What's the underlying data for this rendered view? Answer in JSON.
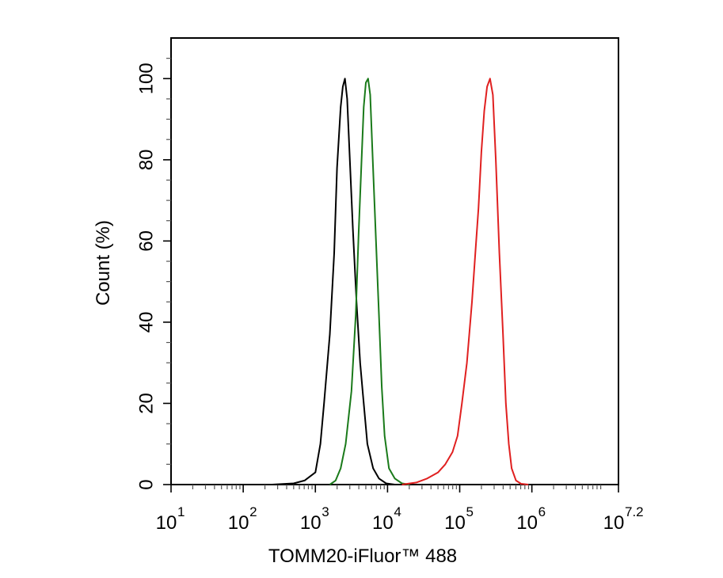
{
  "chart_data": {
    "type": "line",
    "title": "",
    "xlabel": "TOMM20-iFluor™ 488",
    "ylabel": "Count  (%)",
    "x_scale": "log10",
    "xlim_log10": [
      1,
      7.2
    ],
    "ylim": [
      0,
      110
    ],
    "x_ticks": [
      {
        "base": "10",
        "exp": "1"
      },
      {
        "base": "10",
        "exp": "2"
      },
      {
        "base": "10",
        "exp": "3"
      },
      {
        "base": "10",
        "exp": "4"
      },
      {
        "base": "10",
        "exp": "5"
      },
      {
        "base": "10",
        "exp": "6"
      },
      {
        "base": "10",
        "exp": "7.2"
      }
    ],
    "y_ticks": [
      "0",
      "20",
      "40",
      "60",
      "80",
      "100"
    ],
    "grid": false,
    "series": [
      {
        "color": "#000000",
        "points": [
          [
            2.4,
            0
          ],
          [
            2.7,
            0.3
          ],
          [
            2.85,
            1
          ],
          [
            3.0,
            3
          ],
          [
            3.07,
            10
          ],
          [
            3.12,
            20
          ],
          [
            3.2,
            37
          ],
          [
            3.26,
            57
          ],
          [
            3.3,
            78
          ],
          [
            3.35,
            93
          ],
          [
            3.38,
            98
          ],
          [
            3.41,
            100
          ],
          [
            3.44,
            95
          ],
          [
            3.47,
            83
          ],
          [
            3.52,
            63
          ],
          [
            3.57,
            45
          ],
          [
            3.62,
            30
          ],
          [
            3.66,
            22
          ],
          [
            3.72,
            10
          ],
          [
            3.8,
            4
          ],
          [
            3.88,
            1.5
          ],
          [
            3.98,
            0.3
          ],
          [
            4.1,
            0
          ]
        ]
      },
      {
        "color": "#1a7a1a",
        "points": [
          [
            3.2,
            0
          ],
          [
            3.28,
            1
          ],
          [
            3.35,
            4
          ],
          [
            3.42,
            10
          ],
          [
            3.5,
            23
          ],
          [
            3.56,
            42
          ],
          [
            3.6,
            62
          ],
          [
            3.64,
            80
          ],
          [
            3.67,
            93
          ],
          [
            3.7,
            99
          ],
          [
            3.73,
            100
          ],
          [
            3.76,
            96
          ],
          [
            3.79,
            82
          ],
          [
            3.84,
            60
          ],
          [
            3.88,
            42
          ],
          [
            3.92,
            24
          ],
          [
            3.96,
            12
          ],
          [
            4.02,
            4
          ],
          [
            4.1,
            1.5
          ],
          [
            4.2,
            0.3
          ],
          [
            4.3,
            0
          ]
        ]
      },
      {
        "color": "#e02020",
        "points": [
          [
            4.2,
            0
          ],
          [
            4.4,
            0.5
          ],
          [
            4.55,
            1.5
          ],
          [
            4.7,
            3
          ],
          [
            4.8,
            5
          ],
          [
            4.9,
            8
          ],
          [
            4.97,
            12
          ],
          [
            5.03,
            20
          ],
          [
            5.1,
            30
          ],
          [
            5.17,
            45
          ],
          [
            5.22,
            58
          ],
          [
            5.26,
            68
          ],
          [
            5.3,
            82
          ],
          [
            5.34,
            92
          ],
          [
            5.38,
            98
          ],
          [
            5.42,
            100
          ],
          [
            5.46,
            96
          ],
          [
            5.5,
            80
          ],
          [
            5.55,
            57
          ],
          [
            5.6,
            37
          ],
          [
            5.64,
            20
          ],
          [
            5.68,
            10
          ],
          [
            5.72,
            4
          ],
          [
            5.78,
            1
          ],
          [
            5.85,
            0.2
          ],
          [
            5.95,
            0
          ]
        ]
      }
    ]
  }
}
